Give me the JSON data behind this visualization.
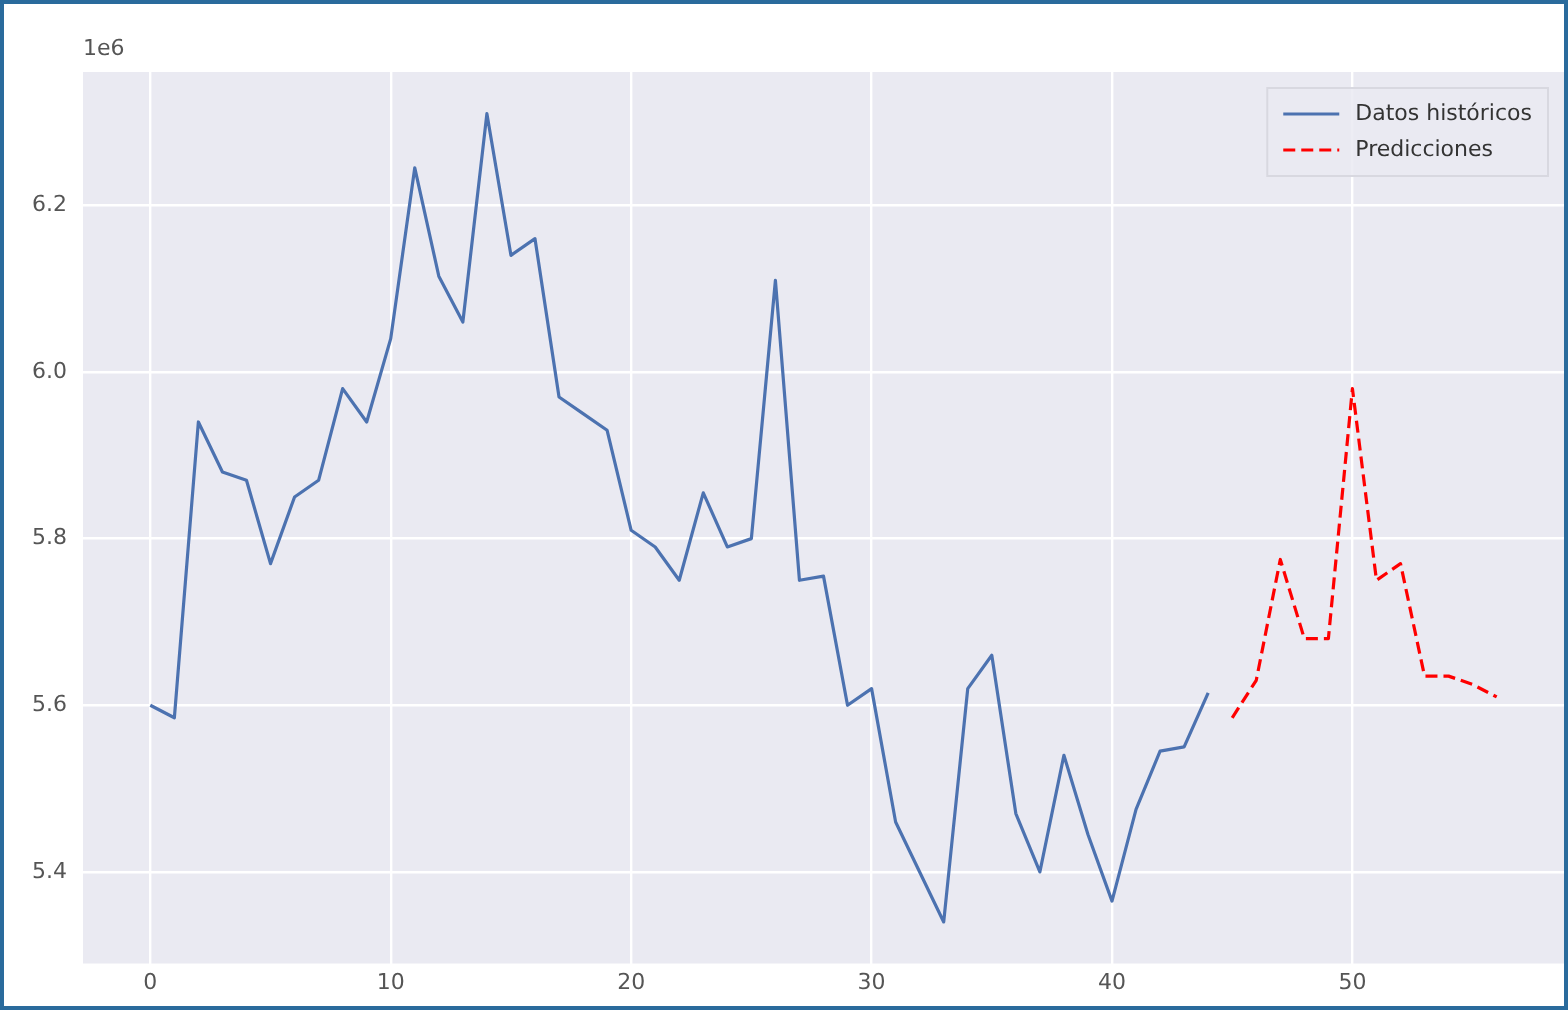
{
  "chart_data": {
    "type": "line",
    "annotations": [
      "1e6"
    ],
    "xlim": [
      -2.8,
      58.8
    ],
    "xticks": [
      0,
      10,
      20,
      30,
      40,
      50
    ],
    "ylim": [
      5.29,
      6.36
    ],
    "yticks": [
      {
        "value": 5.4,
        "label": "5.4"
      },
      {
        "value": 5.6,
        "label": "5.6"
      },
      {
        "value": 5.8,
        "label": "5.8"
      },
      {
        "value": 6.0,
        "label": "6.0"
      },
      {
        "value": 6.2,
        "label": "6.2"
      }
    ],
    "grid": true,
    "legend": "top right",
    "marker": "none",
    "series": [
      {
        "name": "Datos históricos",
        "color": "#4c72b0",
        "line_style": "solid",
        "x": [
          0,
          1,
          2,
          3,
          4,
          5,
          6,
          7,
          8,
          9,
          10,
          11,
          12,
          13,
          14,
          15,
          16,
          17,
          18,
          19,
          20,
          21,
          22,
          23,
          24,
          25,
          26,
          27,
          28,
          29,
          30,
          31,
          32,
          33,
          34,
          35,
          36,
          37,
          38,
          39,
          40,
          41,
          42,
          43,
          44
        ],
        "values": [
          5.6,
          5.585,
          5.94,
          5.88,
          5.87,
          5.77,
          5.85,
          5.87,
          5.98,
          5.94,
          6.04,
          6.245,
          6.115,
          6.06,
          6.31,
          6.14,
          6.16,
          5.97,
          5.95,
          5.93,
          5.81,
          5.79,
          5.75,
          5.855,
          5.79,
          5.8,
          6.11,
          5.75,
          5.755,
          5.6,
          5.62,
          5.46,
          5.4,
          5.34,
          5.62,
          5.66,
          5.47,
          5.4,
          5.54,
          5.445,
          5.365,
          5.475,
          5.545,
          5.55,
          5.615
        ]
      },
      {
        "name": "Predicciones",
        "color": "#ff0000",
        "line_style": "dashed",
        "x": [
          45,
          46,
          47,
          48,
          49,
          50,
          51,
          52,
          53,
          54,
          55,
          56
        ],
        "values": [
          5.585,
          5.63,
          5.775,
          5.68,
          5.68,
          5.98,
          5.75,
          5.77,
          5.635,
          5.635,
          5.625,
          5.61
        ]
      }
    ]
  }
}
